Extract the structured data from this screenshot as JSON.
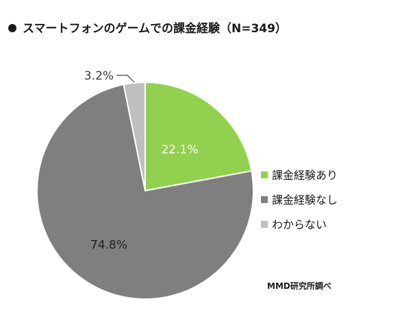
{
  "chart_data": {
    "type": "pie",
    "title": "スマートフォンのゲームでの課金経験（N=349）",
    "slices": [
      {
        "label": "課金経験あり",
        "value": 22.1,
        "value_label": "22.1%",
        "color": "#92d050"
      },
      {
        "label": "課金経験なし",
        "value": 74.8,
        "value_label": "74.8%",
        "color": "#7f7f7f"
      },
      {
        "label": "わからない",
        "value": 3.2,
        "value_label": "3.2%",
        "color": "#bfbfbf"
      }
    ],
    "start_angle": "12 o'clock",
    "direction": "clockwise",
    "legend_position": "right",
    "source": "MMD研究所調べ"
  }
}
